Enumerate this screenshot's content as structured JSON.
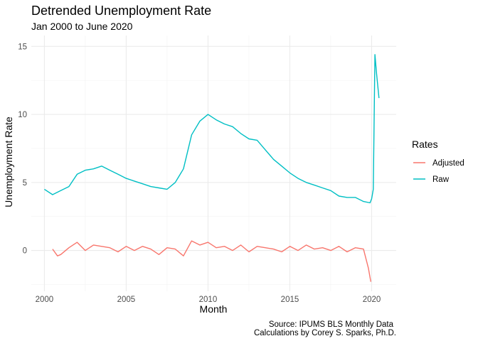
{
  "chart_data": {
    "type": "line",
    "title": "Detrended Unemployment Rate",
    "subtitle": "Jan 2000 to June 2020",
    "xlabel": "Month",
    "ylabel": "Unemployment Rate",
    "xlim": [
      1999.2,
      2021.5
    ],
    "ylim": [
      -3.0,
      15.8
    ],
    "xticks": [
      2000,
      2005,
      2010,
      2015,
      2020
    ],
    "xtick_labels": [
      "2000",
      "2005",
      "2010",
      "2015",
      "2020"
    ],
    "yticks": [
      0,
      5,
      10,
      15
    ],
    "ytick_labels": [
      "0",
      "5",
      "10",
      "15"
    ],
    "grid": true,
    "legend": {
      "title": "Rates",
      "position": "right",
      "entries": [
        "Adjusted",
        "Raw"
      ]
    },
    "caption": [
      "Source: IPUMS BLS Monthly Data",
      "Calculations by Corey S. Sparks, Ph.D."
    ],
    "series": [
      {
        "name": "Raw",
        "color": "#00BFC4",
        "x": [
          2000.0,
          2000.5,
          2001.0,
          2001.5,
          2002.0,
          2002.5,
          2003.0,
          2003.5,
          2004.0,
          2004.5,
          2005.0,
          2005.5,
          2006.0,
          2006.5,
          2007.0,
          2007.5,
          2008.0,
          2008.5,
          2009.0,
          2009.5,
          2010.0,
          2010.5,
          2011.0,
          2011.5,
          2012.0,
          2012.5,
          2013.0,
          2013.5,
          2014.0,
          2014.5,
          2015.0,
          2015.5,
          2016.0,
          2016.5,
          2017.0,
          2017.5,
          2018.0,
          2018.5,
          2019.0,
          2019.5,
          2019.9,
          2020.0,
          2020.1,
          2020.2,
          2020.3,
          2020.45
        ],
        "y": [
          4.5,
          4.1,
          4.4,
          4.7,
          5.6,
          5.9,
          6.0,
          6.2,
          5.9,
          5.6,
          5.3,
          5.1,
          4.9,
          4.7,
          4.6,
          4.5,
          5.0,
          6.0,
          8.5,
          9.5,
          10.0,
          9.6,
          9.3,
          9.1,
          8.6,
          8.2,
          8.1,
          7.4,
          6.7,
          6.2,
          5.7,
          5.3,
          5.0,
          4.8,
          4.6,
          4.4,
          4.0,
          3.9,
          3.9,
          3.6,
          3.5,
          3.8,
          4.5,
          14.4,
          13.0,
          11.2
        ],
        "x_label_visible": false
      },
      {
        "name": "Adjusted",
        "color": "#F8766D",
        "x": [
          2000.5,
          2000.8,
          2001.0,
          2001.5,
          2002.0,
          2002.5,
          2003.0,
          2003.5,
          2004.0,
          2004.5,
          2005.0,
          2005.5,
          2006.0,
          2006.5,
          2007.0,
          2007.5,
          2008.0,
          2008.5,
          2009.0,
          2009.5,
          2010.0,
          2010.5,
          2011.0,
          2011.5,
          2012.0,
          2012.5,
          2013.0,
          2013.5,
          2014.0,
          2014.5,
          2015.0,
          2015.5,
          2016.0,
          2016.5,
          2017.0,
          2017.5,
          2018.0,
          2018.5,
          2019.0,
          2019.5,
          2019.8,
          2019.95
        ],
        "y": [
          0.1,
          -0.4,
          -0.3,
          0.2,
          0.6,
          0.0,
          0.4,
          0.3,
          0.2,
          -0.1,
          0.3,
          0.0,
          0.3,
          0.1,
          -0.3,
          0.2,
          0.1,
          -0.4,
          0.7,
          0.4,
          0.6,
          0.2,
          0.3,
          0.0,
          0.4,
          -0.1,
          0.3,
          0.2,
          0.1,
          -0.1,
          0.3,
          0.0,
          0.4,
          0.1,
          0.2,
          0.0,
          0.3,
          -0.1,
          0.2,
          0.1,
          -1.3,
          -2.3
        ]
      }
    ]
  }
}
